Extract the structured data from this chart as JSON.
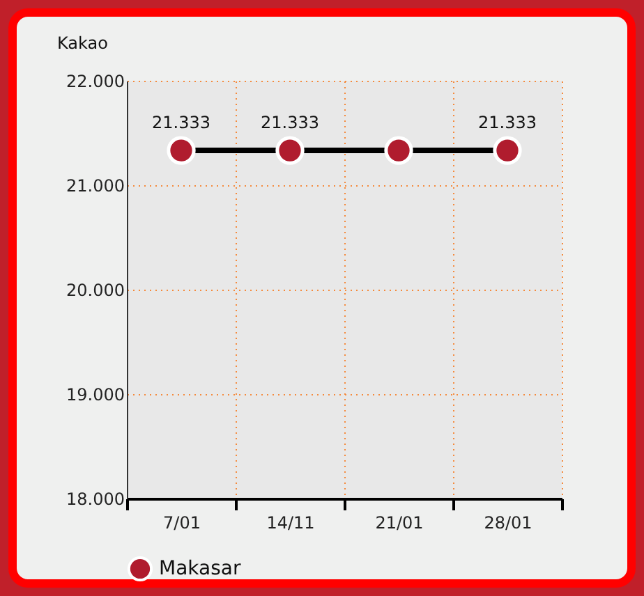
{
  "chart_data": {
    "type": "line",
    "title": "Kakao",
    "categories": [
      "7/01",
      "14/11",
      "21/01",
      "28/01"
    ],
    "series": [
      {
        "name": "Makasar",
        "color": "#b01c2e",
        "values": [
          21333,
          21333,
          21333,
          21333
        ],
        "value_labels": [
          "21.333",
          "21.333",
          null,
          "21.333"
        ]
      }
    ],
    "ylim": [
      18000,
      22000
    ],
    "yticks": [
      {
        "value": 18000,
        "label": "18.000"
      },
      {
        "value": 19000,
        "label": "19.000"
      },
      {
        "value": 20000,
        "label": "20.000"
      },
      {
        "value": 21000,
        "label": "21.000"
      },
      {
        "value": 22000,
        "label": "22.000"
      }
    ],
    "grid": true,
    "legend": "bottom",
    "marker": "circle",
    "line_style": "solid"
  }
}
